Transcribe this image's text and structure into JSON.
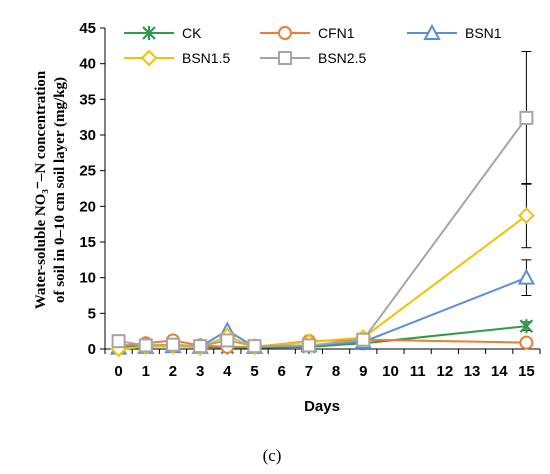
{
  "chart_data": {
    "type": "line",
    "xlabel": "Days",
    "ylabel_line1": "Water-soluble NO₃⁻–N concentration",
    "ylabel_line2": "of soil in 0–10 cm soil layer (mg/kg)",
    "caption": "(c)",
    "categories": [
      "0",
      "1",
      "2",
      "3",
      "4",
      "5",
      "7",
      "9",
      "15"
    ],
    "axis_tick_labels": [
      "0",
      "1",
      "2",
      "3",
      "4",
      "5",
      "6",
      "7",
      "8",
      "9",
      "10",
      "11",
      "12",
      "13",
      "14",
      "15"
    ],
    "ylim": [
      0,
      45
    ],
    "y_ticks": [
      0,
      5,
      10,
      15,
      20,
      25,
      30,
      35,
      40,
      45
    ],
    "grid": false,
    "legend_placement": "top",
    "series": [
      {
        "name": "CK",
        "color": "#2e9c4a",
        "marker": "star",
        "values": [
          0.3,
          0.4,
          0.4,
          0.3,
          0.2,
          0.2,
          0.3,
          0.8,
          3.2
        ],
        "errors": [
          0,
          0,
          0,
          0,
          0,
          0,
          0,
          0,
          0.6
        ]
      },
      {
        "name": "CFN1",
        "color": "#ed7d31",
        "marker": "circle",
        "values": [
          0.4,
          0.8,
          1.2,
          0.5,
          0.3,
          0.3,
          1.1,
          1.3,
          0.9
        ],
        "errors": [
          0,
          0,
          0,
          0,
          0,
          0,
          0,
          0,
          0.3
        ]
      },
      {
        "name": "BSN1",
        "color": "#5b8fd4",
        "marker": "triangle",
        "values": [
          0.2,
          0.3,
          0.4,
          0.3,
          2.6,
          0.3,
          0.5,
          1.0,
          10.0
        ],
        "errors": [
          0,
          0,
          0,
          0,
          0,
          0,
          0,
          0,
          2.5
        ]
      },
      {
        "name": "BSN1.5",
        "color": "#f2c200",
        "marker": "diamond",
        "values": [
          0.0,
          0.3,
          0.4,
          0.2,
          1.8,
          0.3,
          1.0,
          1.6,
          18.7
        ],
        "errors": [
          0,
          0,
          0,
          0,
          0,
          0,
          0,
          0,
          4.5
        ]
      },
      {
        "name": "BSN2.5",
        "color": "#a5a5a5",
        "marker": "square",
        "values": [
          1.1,
          0.5,
          0.6,
          0.4,
          1.2,
          0.4,
          0.5,
          1.3,
          32.4
        ],
        "errors": [
          0,
          0,
          0,
          0,
          0,
          0,
          0,
          0,
          9.3
        ]
      }
    ]
  }
}
